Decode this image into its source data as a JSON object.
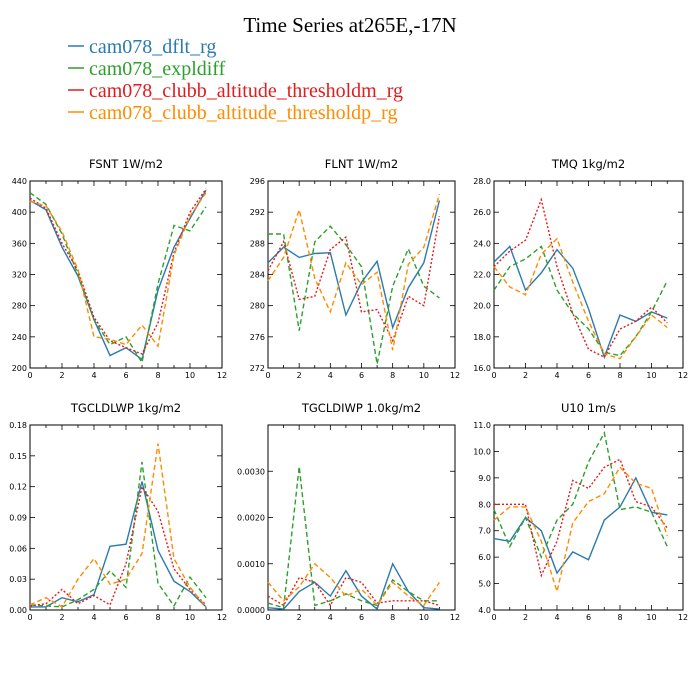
{
  "figure": {
    "title": "Time Series at265E,-17N"
  },
  "legend": [
    {
      "name": "cam078_dflt_rg",
      "color": "#2a7ab0",
      "dash": "solid"
    },
    {
      "name": "cam078_expldiff",
      "color": "#2ca02c",
      "dash": "dash"
    },
    {
      "name": "cam078_clubb_altitude_thresholdm_rg",
      "color": "#e41a1c",
      "dash": "dot"
    },
    {
      "name": "cam078_clubb_altitude_thresholdp_rg",
      "color": "#ff8c00",
      "dash": "dash"
    }
  ],
  "chart_data": [
    {
      "type": "line",
      "title": "FSNT   1W/m2",
      "x": [
        0,
        1,
        2,
        3,
        4,
        5,
        6,
        7,
        8,
        9,
        10,
        11
      ],
      "xlim": [
        0,
        12
      ],
      "xticks": [
        0,
        2,
        4,
        6,
        8,
        10,
        12
      ],
      "xticklabels": [
        "0",
        "2",
        "4",
        "6",
        "8",
        "10",
        "12"
      ],
      "ylim": [
        200,
        440
      ],
      "yticks": [
        200,
        240,
        280,
        320,
        360,
        400,
        440
      ],
      "yticklabels": [
        "200",
        "240",
        "280",
        "320",
        "360",
        "400",
        "440"
      ],
      "series": [
        {
          "name": "cam078_dflt_rg",
          "values": [
            415,
            403,
            355,
            318,
            262,
            216,
            226,
            211,
            300,
            355,
            392,
            428
          ]
        },
        {
          "name": "cam078_expldiff",
          "values": [
            425,
            410,
            372,
            320,
            262,
            230,
            240,
            207,
            308,
            383,
            376,
            407
          ]
        },
        {
          "name": "cam078_clubb_altitude_thresholdm_rg",
          "values": [
            418,
            405,
            360,
            325,
            265,
            235,
            226,
            218,
            258,
            348,
            400,
            430
          ]
        },
        {
          "name": "cam078_clubb_altitude_thresholdp_rg",
          "values": [
            414,
            408,
            375,
            326,
            240,
            237,
            230,
            255,
            228,
            345,
            395,
            425
          ]
        }
      ]
    },
    {
      "type": "line",
      "title": "FLNT   1W/m2",
      "x": [
        0,
        1,
        2,
        3,
        4,
        5,
        6,
        7,
        8,
        9,
        10,
        11
      ],
      "xlim": [
        0,
        12
      ],
      "xticks": [
        0,
        2,
        4,
        6,
        8,
        10,
        12
      ],
      "xticklabels": [
        "0",
        "2",
        "4",
        "6",
        "8",
        "10",
        "12"
      ],
      "ylim": [
        272,
        296
      ],
      "yticks": [
        272,
        276,
        280,
        284,
        288,
        292,
        296
      ],
      "yticklabels": [
        "272",
        "276",
        "280",
        "284",
        "288",
        "292",
        "296"
      ],
      "series": [
        {
          "name": "cam078_dflt_rg",
          "values": [
            285.5,
            287.5,
            286.2,
            286.7,
            286.8,
            278.8,
            283.0,
            285.7,
            277.2,
            282.3,
            285.5,
            293.5
          ]
        },
        {
          "name": "cam078_expldiff",
          "values": [
            289.2,
            289.2,
            276.8,
            288.2,
            290.2,
            287.8,
            285.0,
            272.5,
            282.5,
            287.3,
            282.5,
            281.0
          ]
        },
        {
          "name": "cam078_clubb_altitude_thresholdm_rg",
          "values": [
            284.5,
            288.2,
            280.8,
            281.2,
            287.2,
            288.8,
            279.2,
            279.5,
            275.5,
            281.2,
            280.0,
            291.5
          ]
        },
        {
          "name": "cam078_clubb_altitude_thresholdp_rg",
          "values": [
            283.2,
            286.2,
            292.3,
            283.5,
            279.2,
            285.5,
            282.7,
            284.3,
            274.3,
            285.3,
            287.5,
            294.3
          ]
        }
      ]
    },
    {
      "type": "line",
      "title": "TMQ   1kg/m2",
      "x": [
        0,
        1,
        2,
        3,
        4,
        5,
        6,
        7,
        8,
        9,
        10,
        11
      ],
      "xlim": [
        0,
        12
      ],
      "xticks": [
        0,
        2,
        4,
        6,
        8,
        10,
        12
      ],
      "xticklabels": [
        "0",
        "2",
        "4",
        "6",
        "8",
        "10",
        "12"
      ],
      "ylim": [
        16,
        28
      ],
      "yticks": [
        16,
        18,
        20,
        22,
        24,
        26,
        28
      ],
      "yticklabels": [
        "16.0",
        "18.0",
        "20.0",
        "22.0",
        "24.0",
        "26.0",
        "28.0"
      ],
      "series": [
        {
          "name": "cam078_dflt_rg",
          "values": [
            22.8,
            23.8,
            21.0,
            22.1,
            23.6,
            22.4,
            19.8,
            16.7,
            19.4,
            19.0,
            19.6,
            19.2
          ]
        },
        {
          "name": "cam078_expldiff",
          "values": [
            21.0,
            22.5,
            23.0,
            23.8,
            21.0,
            19.5,
            18.5,
            17.0,
            16.8,
            18.0,
            19.6,
            21.6
          ]
        },
        {
          "name": "cam078_clubb_altitude_thresholdm_rg",
          "values": [
            22.5,
            23.5,
            24.2,
            26.8,
            22.5,
            19.5,
            17.2,
            16.7,
            18.5,
            19.0,
            19.9,
            18.9
          ]
        },
        {
          "name": "cam078_clubb_altitude_thresholdp_rg",
          "values": [
            22.5,
            21.2,
            20.7,
            23.3,
            24.3,
            21.5,
            19.0,
            16.9,
            16.6,
            18.0,
            19.4,
            18.6
          ]
        }
      ]
    },
    {
      "type": "line",
      "title": "TGCLDLWP   1kg/m2",
      "x": [
        0,
        1,
        2,
        3,
        4,
        5,
        6,
        7,
        8,
        9,
        10,
        11
      ],
      "xlim": [
        0,
        12
      ],
      "xticks": [
        0,
        2,
        4,
        6,
        8,
        10,
        12
      ],
      "xticklabels": [
        "0",
        "2",
        "4",
        "6",
        "8",
        "10",
        "12"
      ],
      "ylim": [
        0,
        0.18
      ],
      "yticks": [
        0,
        0.03,
        0.06,
        0.09,
        0.12,
        0.15,
        0.18
      ],
      "yticklabels": [
        "0.00",
        "0.03",
        "0.06",
        "0.09",
        "0.12",
        "0.15",
        "0.18"
      ],
      "series": [
        {
          "name": "cam078_dflt_rg",
          "values": [
            0.003,
            0.003,
            0.012,
            0.008,
            0.015,
            0.062,
            0.064,
            0.125,
            0.058,
            0.028,
            0.018,
            0.003
          ]
        },
        {
          "name": "cam078_expldiff",
          "values": [
            0.005,
            0.004,
            0.003,
            0.01,
            0.02,
            0.038,
            0.022,
            0.144,
            0.026,
            0.004,
            0.032,
            0.012
          ]
        },
        {
          "name": "cam078_clubb_altitude_thresholdm_rg",
          "values": [
            0.004,
            0.006,
            0.02,
            0.006,
            0.014,
            0.005,
            0.045,
            0.12,
            0.096,
            0.04,
            0.02,
            0.005
          ]
        },
        {
          "name": "cam078_clubb_altitude_thresholdp_rg",
          "values": [
            0.005,
            0.012,
            0.003,
            0.03,
            0.05,
            0.025,
            0.03,
            0.055,
            0.162,
            0.05,
            0.022,
            0.003
          ]
        }
      ]
    },
    {
      "type": "line",
      "title": "TGCLDIWP   1.0kg/m2",
      "x": [
        0,
        1,
        2,
        3,
        4,
        5,
        6,
        7,
        8,
        9,
        10,
        11
      ],
      "xlim": [
        0,
        12
      ],
      "xticks": [
        0,
        2,
        4,
        6,
        8,
        10,
        12
      ],
      "xticklabels": [
        "0",
        "2",
        "4",
        "6",
        "8",
        "10",
        "12"
      ],
      "ylim": [
        0,
        0.004
      ],
      "yticks": [
        0,
        0.001,
        0.002,
        0.003
      ],
      "yticklabels": [
        "0.0000",
        "0.0010",
        "0.0020",
        "0.0030"
      ],
      "series": [
        {
          "name": "cam078_dflt_rg",
          "values": [
            5e-05,
            2e-05,
            0.0004,
            0.0006,
            0.0003,
            0.00085,
            0.0003,
            2e-05,
            0.001,
            0.0004,
            5e-05,
            2e-05
          ]
        },
        {
          "name": "cam078_expldiff",
          "values": [
            0.00015,
            5e-05,
            0.0031,
            0.0001,
            0.0002,
            0.00035,
            0.0002,
            0.0001,
            0.00065,
            0.0004,
            0.0002,
            0.0002
          ]
        },
        {
          "name": "cam078_clubb_altitude_thresholdm_rg",
          "values": [
            0.0003,
            0.0001,
            0.0007,
            0.0006,
            0.0001,
            0.0007,
            0.0006,
            0.00015,
            0.0002,
            0.0002,
            0.0002,
            0.0001
          ]
        },
        {
          "name": "cam078_clubb_altitude_thresholdp_rg",
          "values": [
            0.0006,
            0.0002,
            0.0005,
            0.001,
            0.0007,
            0.0003,
            0.00045,
            0.0001,
            0.0006,
            0.0003,
            0.0001,
            0.0006
          ]
        }
      ]
    },
    {
      "type": "line",
      "title": "U10   1m/s",
      "x": [
        0,
        1,
        2,
        3,
        4,
        5,
        6,
        7,
        8,
        9,
        10,
        11
      ],
      "xlim": [
        0,
        12
      ],
      "xticks": [
        0,
        2,
        4,
        6,
        8,
        10,
        12
      ],
      "xticklabels": [
        "0",
        "2",
        "4",
        "6",
        "8",
        "10",
        "12"
      ],
      "ylim": [
        4,
        11
      ],
      "yticks": [
        4,
        5,
        6,
        7,
        8,
        9,
        10,
        11
      ],
      "yticklabels": [
        "4.0",
        "5.0",
        "6.0",
        "7.0",
        "8.0",
        "9.0",
        "10.0",
        "11.0"
      ],
      "series": [
        {
          "name": "cam078_dflt_rg",
          "values": [
            6.7,
            6.6,
            7.5,
            7.0,
            5.4,
            6.2,
            5.9,
            7.4,
            7.9,
            9.0,
            7.7,
            7.6
          ]
        },
        {
          "name": "cam078_expldiff",
          "values": [
            7.8,
            6.4,
            7.5,
            6.0,
            7.4,
            8.0,
            9.6,
            10.7,
            7.8,
            7.9,
            7.7,
            6.4
          ]
        },
        {
          "name": "cam078_clubb_altitude_thresholdm_rg",
          "values": [
            8.0,
            8.0,
            8.0,
            5.3,
            6.6,
            8.9,
            8.6,
            9.4,
            9.7,
            8.1,
            7.9,
            7.1
          ]
        },
        {
          "name": "cam078_clubb_altitude_thresholdp_rg",
          "values": [
            7.4,
            7.9,
            7.9,
            6.6,
            4.7,
            7.3,
            8.1,
            8.4,
            9.4,
            8.8,
            8.6,
            6.8
          ]
        }
      ]
    }
  ]
}
